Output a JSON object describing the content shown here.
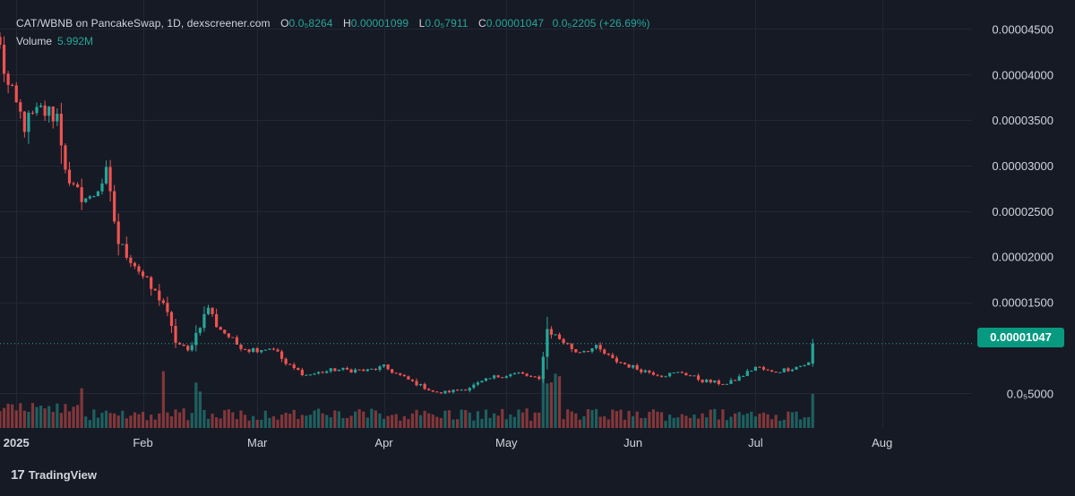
{
  "legend": {
    "title": "CAT/WBNB on PancakeSwap, 1D, dexscreener.com",
    "o_label": "O",
    "o_value": "0.0₅8264",
    "h_label": "H",
    "h_value": "0.00001099",
    "l_label": "L",
    "l_value": "0.0₅7911",
    "c_label": "C",
    "c_value": "0.00001047",
    "change": "0.0₅2205 (+26.69%)"
  },
  "volume_legend": {
    "label": "Volume",
    "value": "5.992M"
  },
  "current_price": "0.00001047",
  "branding": {
    "logo_text": "TradingView",
    "logo_mark": "17"
  },
  "colors": {
    "background": "#161a25",
    "up": "#26a69a",
    "down": "#ef5350",
    "badge": "#089981",
    "grid": "#232734",
    "text": "#d1d4dc"
  },
  "chart_data": {
    "type": "candlestick",
    "interval": "1D",
    "y_axis_ticks": [
      "0.00004500",
      "0.00004000",
      "0.00003500",
      "0.00003000",
      "0.00002500",
      "0.00002000",
      "0.00001500",
      "0.00001047",
      "0.0₅5000"
    ],
    "y_tick_values": [
      4.5e-05,
      4e-05,
      3.5e-05,
      3e-05,
      2.5e-05,
      2e-05,
      1.5e-05,
      1.047e-05,
      5e-06
    ],
    "ylim": [
      1.2e-06,
      4.72e-05
    ],
    "x_tick_labels": [
      "2025",
      "Feb",
      "Mar",
      "Apr",
      "May",
      "Jun",
      "Jul",
      "Aug"
    ],
    "x_tick_dates": [
      "2025-01-01",
      "2025-02-01",
      "2025-03-01",
      "2025-04-01",
      "2025-05-01",
      "2025-06-01",
      "2025-07-01",
      "2025-08-01"
    ],
    "x_range": [
      "2024-12-28",
      "2025-08-23"
    ],
    "first_candle_date": "2024-12-28",
    "grid": true,
    "close_path_anchors": [
      [
        "2024-12-28",
        4.28e-05
      ],
      [
        "2024-12-30",
        3.85e-05
      ],
      [
        "2025-01-03",
        3.45e-05
      ],
      [
        "2025-01-07",
        3.6e-05
      ],
      [
        "2025-01-11",
        3.55e-05
      ],
      [
        "2025-01-14",
        2.75e-05
      ],
      [
        "2025-01-19",
        2.62e-05
      ],
      [
        "2025-01-23",
        2.9e-05
      ],
      [
        "2025-01-26",
        2.15e-05
      ],
      [
        "2025-01-30",
        1.92e-05
      ],
      [
        "2025-02-03",
        1.65e-05
      ],
      [
        "2025-02-06",
        1.5e-05
      ],
      [
        "2025-02-09",
        1.07e-05
      ],
      [
        "2025-02-12",
        9.6e-06
      ],
      [
        "2025-02-17",
        1.45e-05
      ],
      [
        "2025-02-19",
        1.25e-05
      ],
      [
        "2025-02-24",
        1.04e-05
      ],
      [
        "2025-02-27",
        9.8e-06
      ],
      [
        "2025-03-05",
        1e-05
      ],
      [
        "2025-03-08",
        8.2e-06
      ],
      [
        "2025-03-13",
        7e-06
      ],
      [
        "2025-03-20",
        7.6e-06
      ],
      [
        "2025-03-28",
        7.5e-06
      ],
      [
        "2025-04-01",
        7.9e-06
      ],
      [
        "2025-04-06",
        6.7e-06
      ],
      [
        "2025-04-14",
        5e-06
      ],
      [
        "2025-04-21",
        5.5e-06
      ],
      [
        "2025-04-28",
        6.8e-06
      ],
      [
        "2025-05-04",
        7.2e-06
      ],
      [
        "2025-05-09",
        6.5e-06
      ],
      [
        "2025-05-11",
        1.2e-05
      ],
      [
        "2025-05-14",
        1.1e-05
      ],
      [
        "2025-05-18",
        9.6e-06
      ],
      [
        "2025-05-23",
        1e-05
      ],
      [
        "2025-05-27",
        8.7e-06
      ],
      [
        "2025-06-02",
        7.7e-06
      ],
      [
        "2025-06-08",
        7e-06
      ],
      [
        "2025-06-13",
        7.3e-06
      ],
      [
        "2025-06-18",
        6.4e-06
      ],
      [
        "2025-06-24",
        6e-06
      ],
      [
        "2025-06-28",
        7e-06
      ],
      [
        "2025-07-01",
        7.9e-06
      ],
      [
        "2025-07-05",
        7.3e-06
      ],
      [
        "2025-07-11",
        7.9e-06
      ],
      [
        "2025-07-14",
        8.3e-06
      ],
      [
        "2025-07-15",
        1.047e-05
      ]
    ],
    "last_candle": {
      "date": "2025-07-15",
      "open": 8.264e-06,
      "high": 1.099e-05,
      "low": 7.911e-06,
      "close": 1.047e-05
    },
    "volume": {
      "current": "5.992M",
      "spike_dates": [
        "2025-01-17",
        "2025-02-06",
        "2025-02-14",
        "2025-02-15",
        "2025-05-10",
        "2025-05-11",
        "2025-05-12",
        "2025-05-13",
        "2025-05-14",
        "2025-07-15"
      ]
    }
  }
}
